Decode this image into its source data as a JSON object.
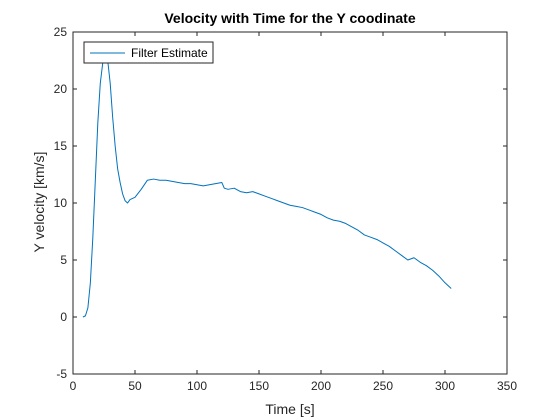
{
  "chart_data": {
    "type": "line",
    "title": "Velocity with Time for the Y coodinate",
    "xlabel": "Time [s]",
    "ylabel": "Y velocity [km/s]",
    "xlim": [
      0,
      350
    ],
    "ylim": [
      -5,
      25
    ],
    "xticks": [
      0,
      50,
      100,
      150,
      200,
      250,
      300,
      350
    ],
    "yticks": [
      -5,
      0,
      5,
      10,
      15,
      20,
      25
    ],
    "grid": false,
    "legend": {
      "placement": "top-left",
      "entries": [
        "Filter Estimate"
      ]
    },
    "series": [
      {
        "name": "Filter Estimate",
        "color": "#0072BD",
        "x": [
          8,
          10,
          12,
          14,
          16,
          18,
          20,
          22,
          24,
          26,
          28,
          30,
          32,
          34,
          36,
          38,
          40,
          42,
          44,
          46,
          50,
          55,
          60,
          65,
          70,
          75,
          80,
          85,
          90,
          95,
          100,
          105,
          110,
          115,
          120,
          122,
          125,
          130,
          135,
          140,
          145,
          150,
          155,
          160,
          165,
          170,
          175,
          180,
          185,
          190,
          195,
          200,
          205,
          210,
          215,
          220,
          225,
          230,
          235,
          240,
          245,
          250,
          255,
          260,
          265,
          270,
          275,
          280,
          285,
          290,
          295,
          300,
          305
        ],
        "y": [
          0,
          0.1,
          0.8,
          3,
          7,
          12,
          17,
          20.5,
          22.3,
          22.8,
          22.5,
          20.5,
          17.5,
          15,
          13,
          11.8,
          10.8,
          10.2,
          10,
          10.3,
          10.5,
          11.2,
          12,
          12.1,
          12,
          12,
          11.9,
          11.8,
          11.7,
          11.7,
          11.6,
          11.5,
          11.6,
          11.7,
          11.8,
          11.3,
          11.2,
          11.3,
          11,
          10.9,
          11,
          10.8,
          10.6,
          10.4,
          10.2,
          10,
          9.8,
          9.7,
          9.6,
          9.4,
          9.2,
          9,
          8.7,
          8.5,
          8.4,
          8.2,
          7.9,
          7.6,
          7.2,
          7,
          6.8,
          6.5,
          6.2,
          5.8,
          5.4,
          5,
          5.2,
          4.8,
          4.5,
          4.1,
          3.6,
          3,
          2.5
        ]
      }
    ]
  }
}
